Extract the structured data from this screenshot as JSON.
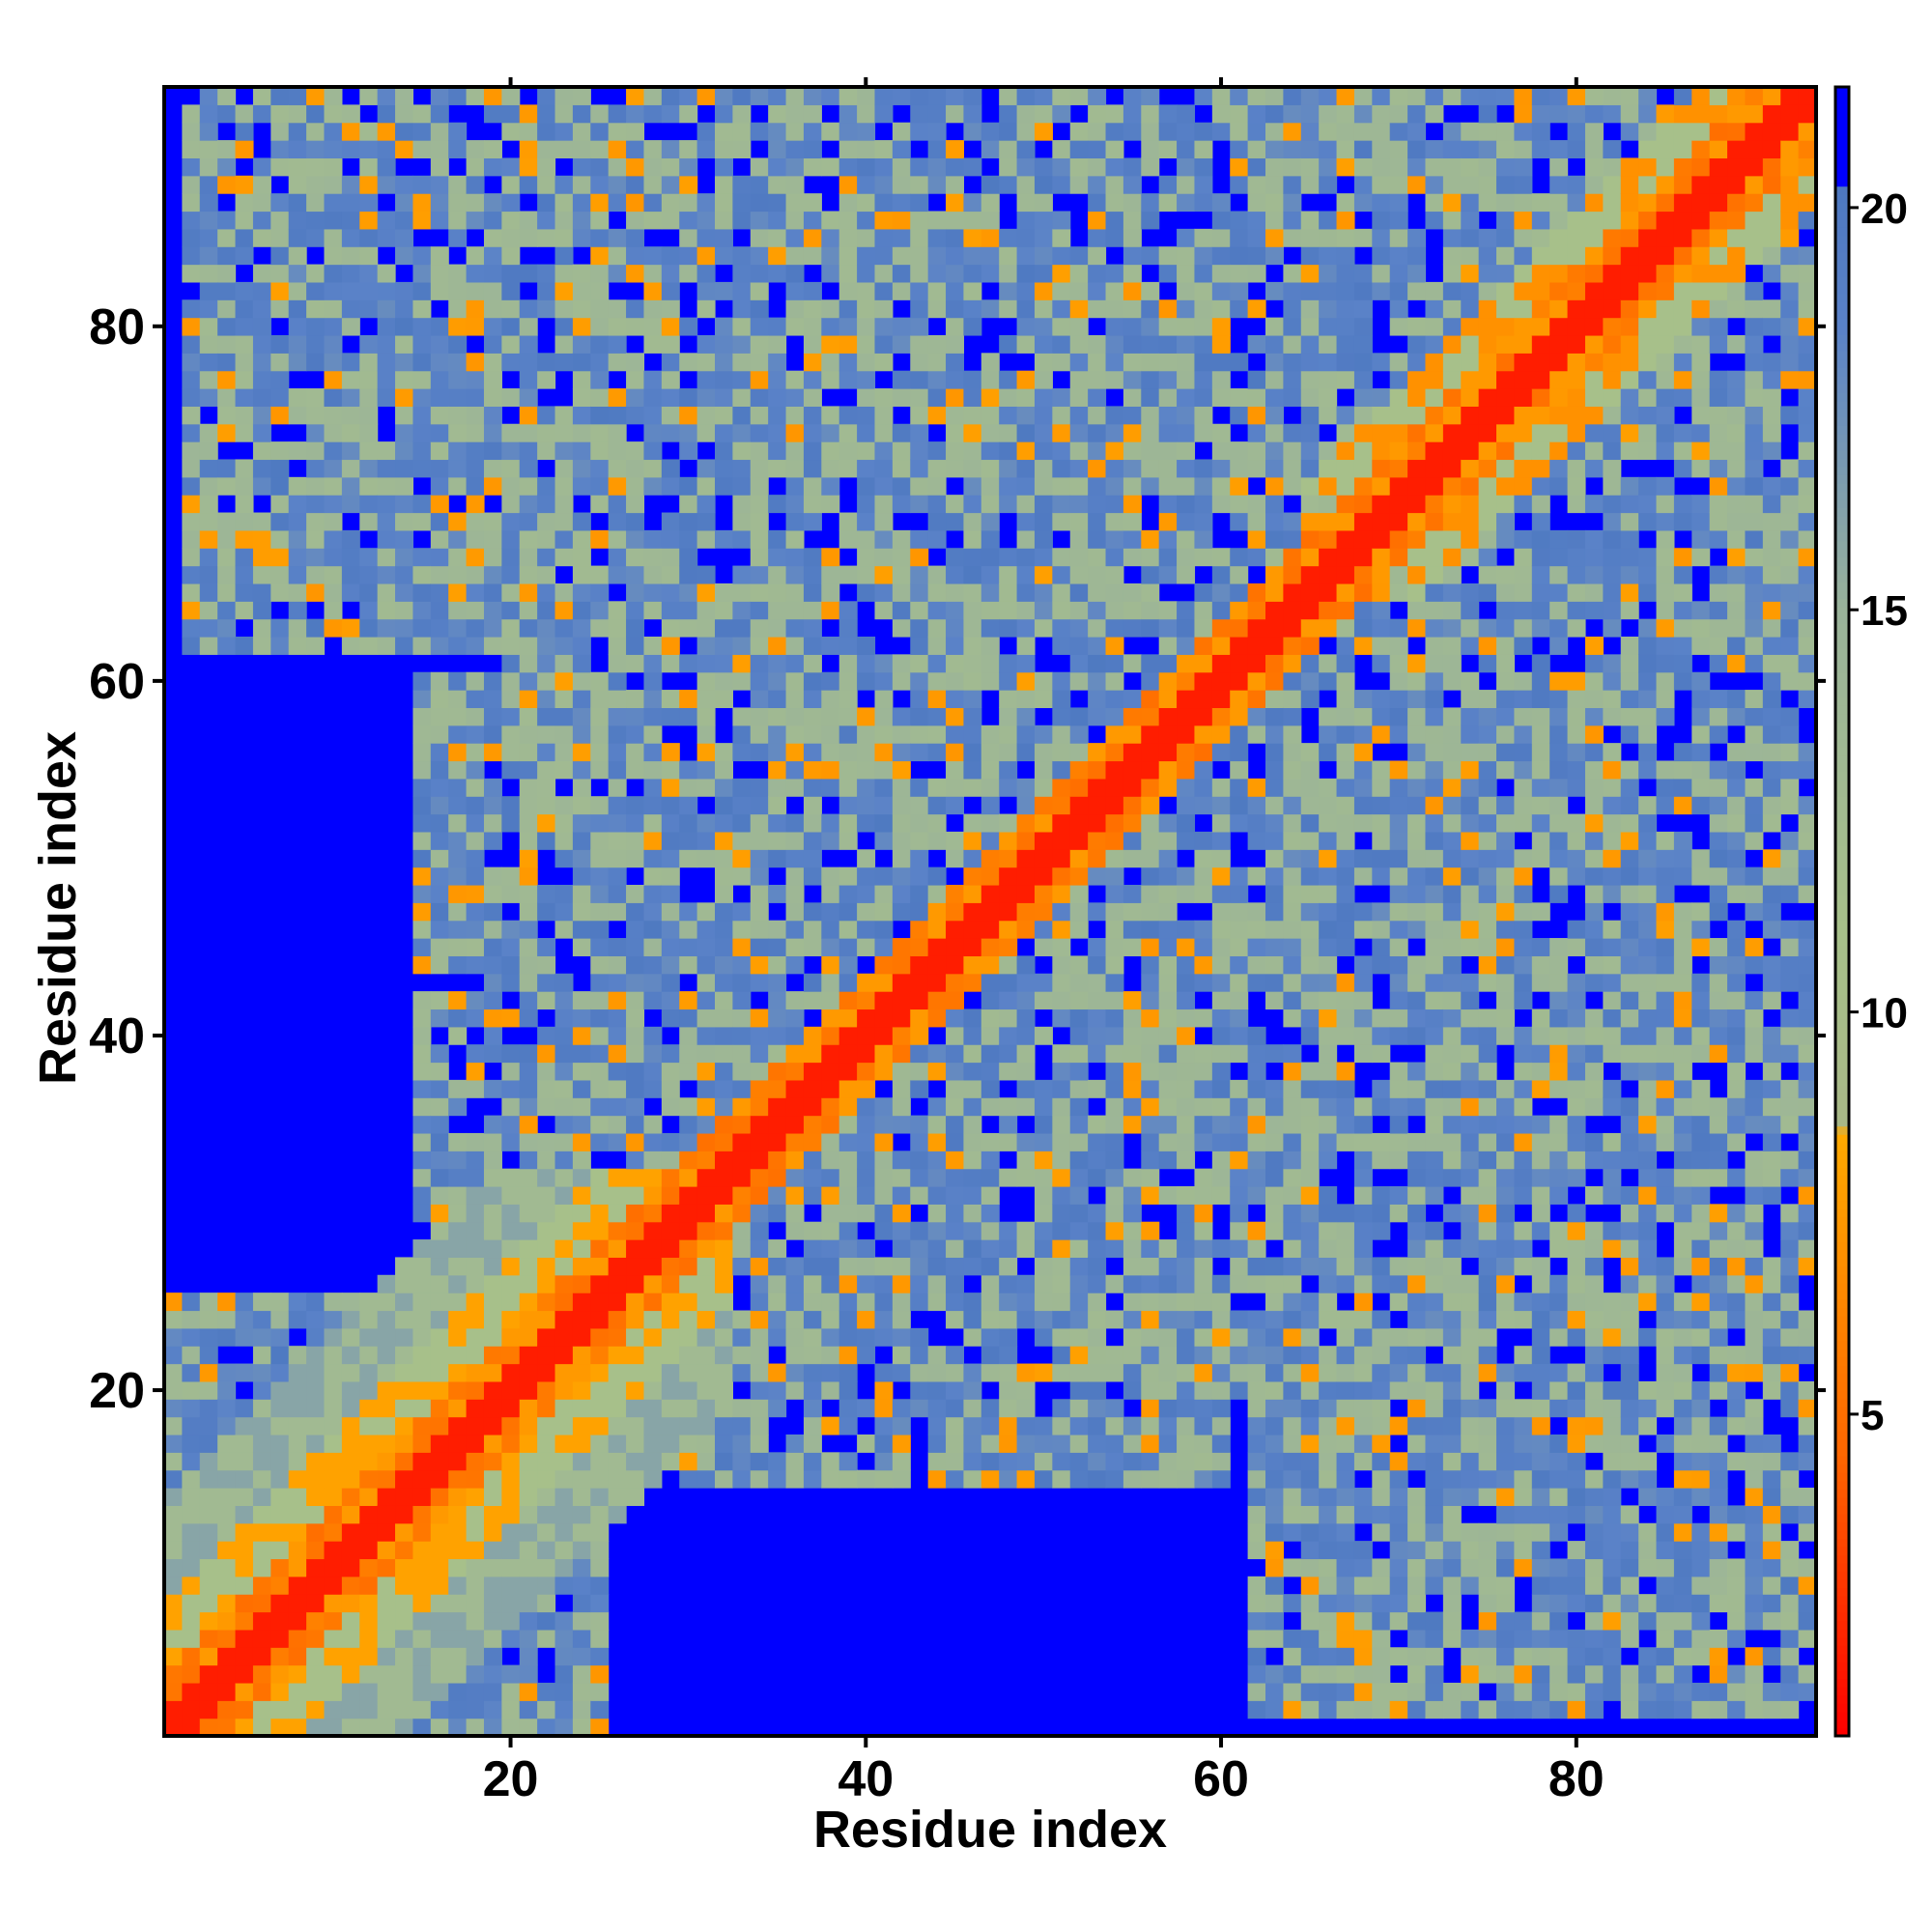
{
  "chart_data": {
    "type": "heatmap",
    "title": "",
    "xlabel": "Residue index",
    "ylabel": "Residue index",
    "n_residues": 93,
    "xlim": [
      1,
      93
    ],
    "ylim": [
      1,
      93
    ],
    "x_ticks": [
      20,
      40,
      60,
      80
    ],
    "y_ticks": [
      20,
      40,
      60,
      80
    ],
    "colorbar": {
      "min": 1,
      "max": 21.5,
      "ticks": [
        5,
        10,
        15,
        20
      ],
      "stops": [
        {
          "value": 1,
          "color": "#ff0000"
        },
        {
          "value": 4.5,
          "color": "#ff6600"
        },
        {
          "value": 8.5,
          "color": "#ffaa00"
        },
        {
          "value": 8.6,
          "color": "#a8b887"
        },
        {
          "value": 11,
          "color": "#a7c08a"
        },
        {
          "value": 15,
          "color": "#9ab39a"
        },
        {
          "value": 18.5,
          "color": "#5a82c8"
        },
        {
          "value": 20.3,
          "color": "#4d78c0"
        },
        {
          "value": 20.31,
          "color": "#0000ff"
        },
        {
          "value": 21.5,
          "color": "#0000ff"
        }
      ]
    },
    "colors": {
      "contact_close": "#ff0000",
      "contact": "#ff8800",
      "mid": "#a7bf8c",
      "far": "#5b86c4",
      "no_contact": "#0000ff"
    },
    "description_of_values": "pairwise residue distance map (symmetric); red on diagonal = nearest, blue = beyond cutoff",
    "seed": 7
  }
}
